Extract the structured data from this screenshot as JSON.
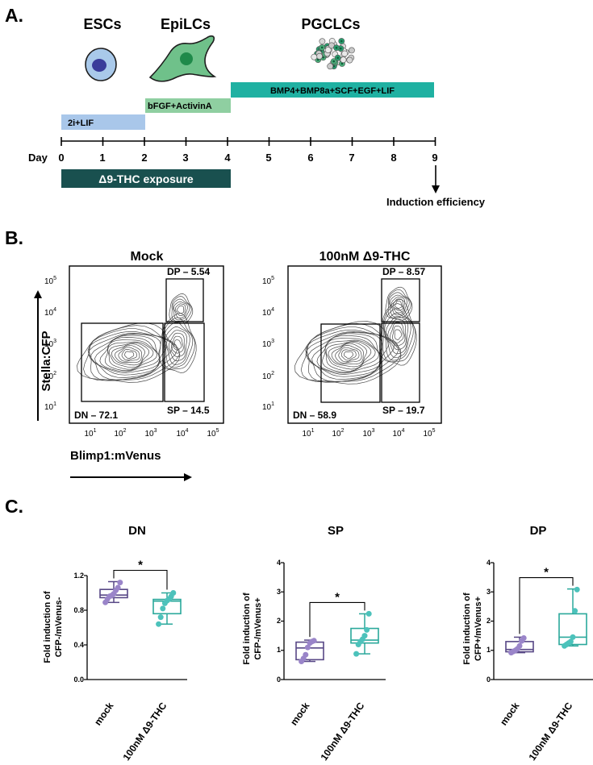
{
  "panel_a": {
    "label": "A.",
    "stages": [
      "ESCs",
      "EpiLCs",
      "PGCLCs"
    ],
    "media": [
      {
        "label": "2i+LIF",
        "start_day": 0,
        "end_day": 2,
        "color": "#a9c7ea"
      },
      {
        "label": "bFGF+ActivinA",
        "start_day": 2,
        "end_day": 4,
        "color": "#8fcfa1"
      },
      {
        "label": "BMP4+BMP8a+SCF+EGF+LIF",
        "start_day": 4,
        "end_day": 9,
        "color": "#1fb1a2"
      }
    ],
    "day_label": "Day",
    "days": [
      "0",
      "1",
      "2",
      "3",
      "4",
      "5",
      "6",
      "7",
      "8",
      "9"
    ],
    "exposure": {
      "label": "Δ9-THC exposure",
      "start_day": 0,
      "end_day": 4,
      "color": "#19504f"
    },
    "readout": "Induction efficiency"
  },
  "panel_b": {
    "label": "B.",
    "y_axis_label": "Stella:CFP",
    "x_axis_label": "Blimp1:mVenus",
    "y_ticks": [
      {
        "base": "10",
        "exp": "5"
      },
      {
        "base": "10",
        "exp": "4"
      },
      {
        "base": "10",
        "exp": "3"
      },
      {
        "base": "10",
        "exp": "2"
      },
      {
        "base": "10",
        "exp": "1"
      }
    ],
    "x_ticks": [
      {
        "base": "10",
        "exp": "1"
      },
      {
        "base": "10",
        "exp": "2"
      },
      {
        "base": "10",
        "exp": "3"
      },
      {
        "base": "10",
        "exp": "4"
      },
      {
        "base": "10",
        "exp": "5"
      }
    ],
    "plots": [
      {
        "title": "Mock",
        "gates": {
          "DP": "DP – 5.54",
          "SP": "SP – 14.5",
          "DN": "DN – 72.1"
        }
      },
      {
        "title": "100nM Δ9-THC",
        "gates": {
          "DP": "DP – 8.57",
          "SP": "SP – 19.7",
          "DN": "DN – 58.9"
        }
      }
    ]
  },
  "panel_c": {
    "label": "C.",
    "significance": "*",
    "charts": [
      {
        "title": "DN",
        "ylabel_lines": [
          "Fold induction of",
          "CFP-/mVenus-"
        ],
        "ylim": [
          0,
          1.2
        ],
        "yticks": [
          "0.0",
          "0.4",
          "0.8",
          "1.2"
        ],
        "categories": [
          "mock",
          "100nM Δ9-THC"
        ]
      },
      {
        "title": "SP",
        "ylabel_lines": [
          "Fold induction of",
          "CFP-/mVenus+"
        ],
        "ylim": [
          0,
          4
        ],
        "yticks": [
          "0",
          "1",
          "2",
          "3",
          "4"
        ],
        "categories": [
          "mock",
          "100nM Δ9-THC"
        ]
      },
      {
        "title": "DP",
        "ylabel_lines": [
          "Fold induction of",
          "CFP+/mVenus+"
        ],
        "ylim": [
          0,
          4
        ],
        "yticks": [
          "0",
          "1",
          "2",
          "3",
          "4"
        ],
        "categories": [
          "mock",
          "100nM Δ9-THC"
        ]
      }
    ]
  },
  "chart_data": [
    {
      "type": "box",
      "title": "DN",
      "ylabel": "Fold induction of CFP-/mVenus-",
      "categories": [
        "mock",
        "100nM Δ9-THC"
      ],
      "ylim": [
        0,
        1.2
      ],
      "colors": [
        "#584886",
        "#2aa89b"
      ],
      "point_colors": [
        "#9a85c9",
        "#4cc2bb"
      ],
      "boxes": [
        {
          "min": 0.89,
          "q1": 0.945,
          "median": 0.975,
          "q3": 1.04,
          "max": 1.13
        },
        {
          "min": 0.64,
          "q1": 0.76,
          "median": 0.905,
          "q3": 0.925,
          "max": 1.0
        }
      ],
      "points": [
        [
          0.89,
          0.93,
          0.96,
          0.97,
          0.99,
          1.03,
          1.06,
          1.12
        ],
        [
          0.64,
          0.72,
          0.82,
          0.88,
          0.91,
          0.93,
          0.96,
          1.0
        ]
      ],
      "significance": "*"
    },
    {
      "type": "box",
      "title": "SP",
      "ylabel": "Fold induction of CFP-/mVenus+",
      "categories": [
        "mock",
        "100nM Δ9-THC"
      ],
      "ylim": [
        0,
        4
      ],
      "colors": [
        "#584886",
        "#2aa89b"
      ],
      "point_colors": [
        "#9a85c9",
        "#4cc2bb"
      ],
      "boxes": [
        {
          "min": 0.62,
          "q1": 0.68,
          "median": 1.08,
          "q3": 1.28,
          "max": 1.35
        },
        {
          "min": 0.88,
          "q1": 1.25,
          "median": 1.35,
          "q3": 1.75,
          "max": 2.25
        }
      ],
      "points": [
        [
          0.62,
          0.72,
          0.85,
          1.1,
          1.25,
          1.3,
          1.33
        ],
        [
          0.88,
          1.2,
          1.3,
          1.38,
          1.5,
          1.7,
          2.25
        ]
      ],
      "significance": "*"
    },
    {
      "type": "box",
      "title": "DP",
      "ylabel": "Fold induction of CFP+/mVenus+",
      "categories": [
        "mock",
        "100nM Δ9-THC"
      ],
      "ylim": [
        0,
        4
      ],
      "colors": [
        "#584886",
        "#2aa89b"
      ],
      "point_colors": [
        "#9a85c9",
        "#4cc2bb"
      ],
      "boxes": [
        {
          "min": 0.92,
          "q1": 0.95,
          "median": 1.03,
          "q3": 1.3,
          "max": 1.45
        },
        {
          "min": 1.15,
          "q1": 1.2,
          "median": 1.45,
          "q3": 2.25,
          "max": 3.1
        }
      ],
      "points": [
        [
          0.92,
          0.96,
          1.0,
          1.05,
          1.15,
          1.32,
          1.42
        ],
        [
          1.15,
          1.2,
          1.25,
          1.3,
          1.45,
          2.35,
          3.08
        ]
      ],
      "significance": "*"
    }
  ]
}
